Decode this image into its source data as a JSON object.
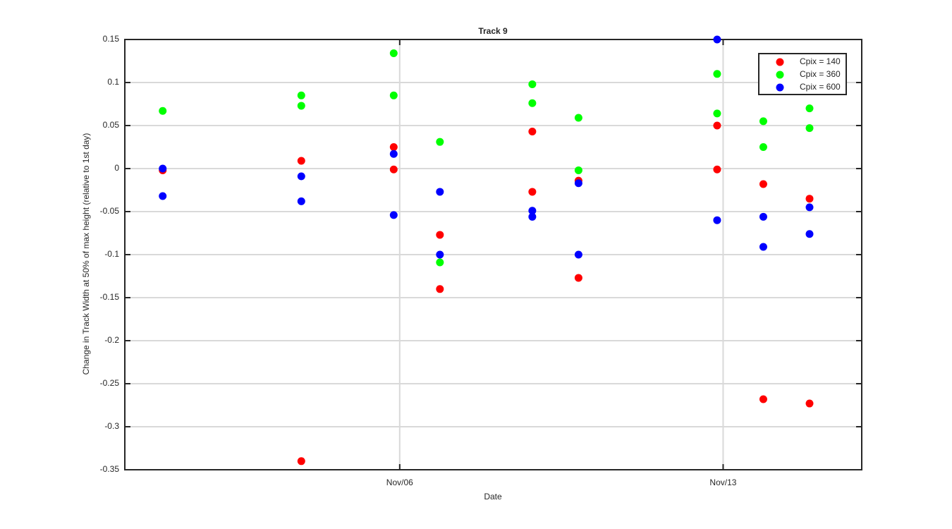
{
  "chart_data": {
    "type": "scatter",
    "title": "Track 9",
    "x_label": "Date",
    "y_label": "Change in Track Width at 50% of max height (relative to 1st day)",
    "xlim": [
      0.05,
      16
    ],
    "xticks": [
      {
        "value": 6,
        "label": "Nov/06"
      },
      {
        "value": 13,
        "label": "Nov/13"
      }
    ],
    "ylim": [
      -0.35,
      0.15
    ],
    "yticks": [
      0.15,
      0.1,
      0.05,
      0,
      -0.05,
      -0.1,
      -0.15,
      -0.2,
      -0.25,
      -0.3,
      -0.35
    ],
    "grid": true,
    "legend": "top-right",
    "series": [
      {
        "name": "Cpix = 140",
        "color": "#ff0000",
        "x": [
          0.87,
          3.87,
          3.87,
          5.87,
          5.87,
          6.87,
          6.87,
          8.87,
          8.87,
          9.87,
          9.87,
          12.87,
          12.87,
          13.87,
          13.87,
          14.87,
          14.87
        ],
        "values": [
          -0.002,
          0.009,
          -0.34,
          0.025,
          -0.001,
          -0.077,
          -0.14,
          0.043,
          -0.027,
          -0.014,
          -0.127,
          0.05,
          -0.001,
          -0.018,
          -0.268,
          -0.035,
          -0.273
        ]
      },
      {
        "name": "Cpix = 360",
        "color": "#00ff00",
        "x": [
          0.87,
          3.87,
          3.87,
          5.87,
          5.87,
          6.87,
          6.87,
          8.87,
          8.87,
          9.87,
          9.87,
          12.87,
          12.87,
          13.87,
          13.87,
          14.87,
          14.87
        ],
        "values": [
          0.067,
          0.085,
          0.073,
          0.134,
          0.085,
          0.031,
          -0.109,
          0.098,
          0.076,
          0.059,
          -0.002,
          0.11,
          0.064,
          0.055,
          0.025,
          0.07,
          0.047
        ]
      },
      {
        "name": "Cpix = 600",
        "color": "#0000ff",
        "x": [
          0.87,
          0.87,
          3.87,
          3.87,
          5.87,
          5.87,
          6.87,
          6.87,
          8.87,
          8.87,
          9.87,
          9.87,
          12.87,
          12.87,
          13.87,
          13.87,
          14.87,
          14.87
        ],
        "values": [
          0.0,
          -0.032,
          -0.009,
          -0.038,
          0.017,
          -0.054,
          -0.027,
          -0.1,
          -0.049,
          -0.056,
          -0.017,
          -0.1,
          0.15,
          -0.06,
          -0.056,
          -0.091,
          -0.045,
          -0.076
        ]
      }
    ]
  }
}
